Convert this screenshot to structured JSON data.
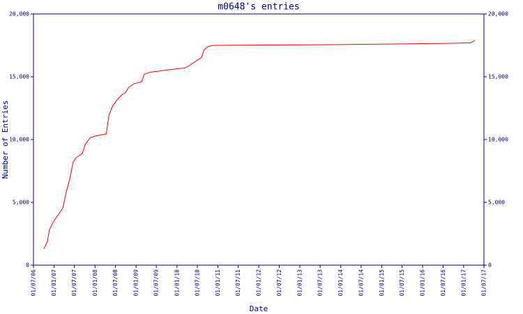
{
  "chart_data": {
    "type": "line",
    "title": "m0648's entries",
    "x_label": "Date",
    "y_label": "Number of Entries",
    "color": "#ff0000",
    "axis_color": "#000080",
    "right_axis": true,
    "x": [
      "2006-10-01",
      "2006-11-01",
      "2006-11-20",
      "2006-12-25",
      "2007-02-10",
      "2007-03-20",
      "2007-04-20",
      "2007-05-20",
      "2007-06-20",
      "2007-07-15",
      "2007-09-10",
      "2007-10-05",
      "2007-11-20",
      "2008-01-10",
      "2008-04-10",
      "2008-05-05",
      "2008-06-05",
      "2008-07-15",
      "2008-09-01",
      "2008-09-25",
      "2008-10-28",
      "2008-12-15",
      "2009-02-20",
      "2009-03-15",
      "2009-05-01",
      "2009-10-10",
      "2010-03-15",
      "2010-05-01",
      "2010-08-10",
      "2010-08-30",
      "2010-10-05",
      "2010-11-20",
      "2013-07-10",
      "2015-01-15",
      "2016-06-01",
      "2017-03-05",
      "2017-04-10"
    ],
    "values": [
      1300,
      1850,
      2800,
      3450,
      4050,
      4550,
      5850,
      6850,
      8200,
      8550,
      8900,
      9600,
      10150,
      10300,
      10450,
      11950,
      12650,
      13150,
      13600,
      13700,
      14150,
      14450,
      14600,
      15200,
      15350,
      15550,
      15700,
      15950,
      16550,
      17150,
      17400,
      17500,
      17550,
      17600,
      17650,
      17700,
      17900
    ],
    "xlim": [
      "2006-07-01",
      "2017-07-01"
    ],
    "xticks": [
      {
        "value": "2006-07-01",
        "label": "01/07/06"
      },
      {
        "value": "2007-01-01",
        "label": "01/01/07"
      },
      {
        "value": "2007-07-01",
        "label": "01/07/07"
      },
      {
        "value": "2008-01-01",
        "label": "01/01/08"
      },
      {
        "value": "2008-07-01",
        "label": "01/07/08"
      },
      {
        "value": "2009-01-01",
        "label": "01/01/09"
      },
      {
        "value": "2009-07-01",
        "label": "01/07/09"
      },
      {
        "value": "2010-01-01",
        "label": "01/01/10"
      },
      {
        "value": "2010-07-01",
        "label": "01/07/10"
      },
      {
        "value": "2011-01-01",
        "label": "01/01/11"
      },
      {
        "value": "2011-07-01",
        "label": "01/07/11"
      },
      {
        "value": "2012-01-01",
        "label": "01/01/12"
      },
      {
        "value": "2012-07-01",
        "label": "01/07/12"
      },
      {
        "value": "2013-01-01",
        "label": "01/01/13"
      },
      {
        "value": "2013-07-01",
        "label": "01/07/13"
      },
      {
        "value": "2014-01-01",
        "label": "01/01/14"
      },
      {
        "value": "2014-07-01",
        "label": "01/07/14"
      },
      {
        "value": "2015-01-01",
        "label": "01/01/15"
      },
      {
        "value": "2015-07-01",
        "label": "01/07/15"
      },
      {
        "value": "2016-01-01",
        "label": "01/01/16"
      },
      {
        "value": "2016-07-01",
        "label": "01/07/16"
      },
      {
        "value": "2017-01-01",
        "label": "01/01/17"
      },
      {
        "value": "2017-07-01",
        "label": "01/07/17"
      }
    ],
    "ylim": [
      0,
      20000
    ],
    "yticks": [
      0,
      {
        "value": 5000,
        "label": "5,000"
      },
      {
        "value": 10000,
        "label": "10,000"
      },
      {
        "value": 15000,
        "label": "15,000"
      },
      {
        "value": 20000,
        "label": "20,000"
      }
    ]
  }
}
